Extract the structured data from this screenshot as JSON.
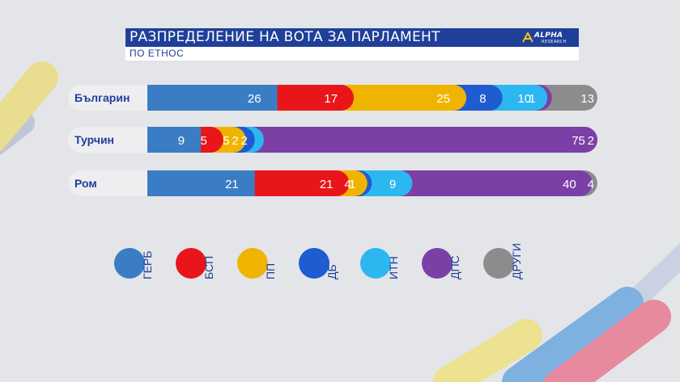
{
  "title": "РАЗПРЕДЕЛЕНИЕ НА ВОТА ЗА ПАРЛАМЕНТ",
  "subtitle": "ПО ЕТНОС",
  "logo": {
    "line1": "ALPHA",
    "line2": "RESEARCH"
  },
  "chart_data": {
    "type": "bar",
    "orientation": "horizontal",
    "stacked": true,
    "categories": [
      "Българин",
      "Турчин",
      "Ром"
    ],
    "series": [
      {
        "name": "ГЕРБ",
        "color": "#3b7dc4",
        "values": [
          26,
          9,
          21
        ]
      },
      {
        "name": "БСП",
        "color": "#e8161b",
        "values": [
          17,
          5,
          21
        ]
      },
      {
        "name": "ПП",
        "color": "#f0b400",
        "values": [
          25,
          5,
          4
        ]
      },
      {
        "name": "ДБ",
        "color": "#1f5bd1",
        "values": [
          8,
          2,
          1
        ]
      },
      {
        "name": "ИТН",
        "color": "#2cb7f0",
        "values": [
          10,
          2,
          9
        ]
      },
      {
        "name": "ДПС",
        "color": "#7b3fa6",
        "values": [
          1,
          75,
          40
        ]
      },
      {
        "name": "ДРУГИ",
        "color": "#8c8c8c",
        "values": [
          13,
          2,
          4
        ]
      }
    ],
    "legend_position": "bottom"
  }
}
